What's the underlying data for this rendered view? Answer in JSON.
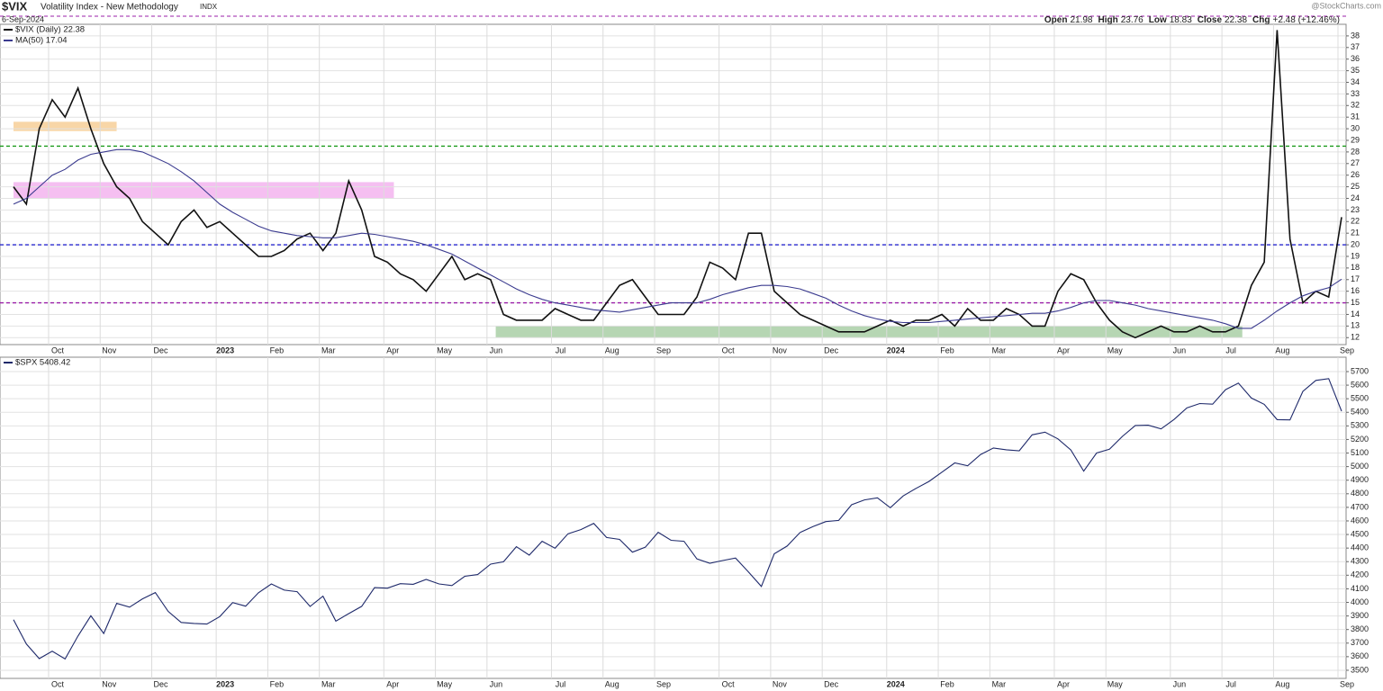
{
  "chart_data": [
    {
      "type": "line",
      "title": "$VIX",
      "subtitle": "Volatility Index - New Methodology",
      "exchange": "INDX",
      "date": "6-Sep-2024",
      "watermark": "@StockCharts.com",
      "quote": [
        {
          "label": "Open",
          "value": "21.98"
        },
        {
          "label": "High",
          "value": "23.76"
        },
        {
          "label": "Low",
          "value": "18.83"
        },
        {
          "label": "Close",
          "value": "22.38"
        },
        {
          "label": "Chg",
          "value": "+2.48 (+12.46%)"
        }
      ],
      "categories": [
        null,
        null,
        null,
        "Oct",
        null,
        null,
        null,
        "Nov",
        null,
        null,
        null,
        "Dec",
        null,
        null,
        null,
        null,
        "2023",
        null,
        null,
        null,
        "Feb",
        null,
        null,
        null,
        "Mar",
        null,
        null,
        null,
        null,
        "Apr",
        null,
        null,
        null,
        "May",
        null,
        null,
        null,
        "Jun",
        null,
        null,
        null,
        null,
        "Jul",
        null,
        null,
        null,
        "Aug",
        null,
        null,
        null,
        "Sep",
        null,
        null,
        null,
        null,
        "Oct",
        null,
        null,
        null,
        "Nov",
        null,
        null,
        null,
        "Dec",
        null,
        null,
        null,
        null,
        "2024",
        null,
        null,
        null,
        "Feb",
        null,
        null,
        null,
        "Mar",
        null,
        null,
        null,
        null,
        "Apr",
        null,
        null,
        null,
        "May",
        null,
        null,
        null,
        null,
        "Jun",
        null,
        null,
        null,
        "Jul",
        null,
        null,
        null,
        "Aug",
        null,
        null,
        null,
        null,
        "Sep"
      ],
      "series": [
        {
          "name": "$VIX (Daily) 22.38",
          "color": "#111111",
          "values": [
            25,
            23.5,
            30,
            32.5,
            31,
            33.5,
            30,
            27,
            25,
            24,
            22,
            21,
            20,
            22,
            23,
            21.5,
            22,
            21,
            20,
            19,
            19,
            19.5,
            20.5,
            21,
            19.5,
            21,
            25.5,
            23,
            19,
            18.5,
            17.5,
            17,
            16,
            17.5,
            19,
            17,
            17.5,
            17,
            14,
            13.5,
            13.5,
            13.5,
            14.5,
            14,
            13.5,
            13.5,
            15,
            16.5,
            17,
            15.5,
            14,
            14,
            14,
            15.5,
            18.5,
            18,
            17,
            21,
            21,
            16,
            15,
            14,
            13.5,
            13,
            12.5,
            12.5,
            12.5,
            13,
            13.5,
            13,
            13.5,
            13.5,
            14,
            13,
            14.5,
            13.5,
            13.5,
            14.5,
            14,
            13,
            13,
            16,
            17.5,
            17,
            15,
            13.5,
            12.5,
            12,
            12.5,
            13,
            12.5,
            12.5,
            13,
            12.5,
            12.5,
            13,
            16.5,
            18.5,
            38.5,
            20.5,
            15,
            16,
            15.5,
            22.38
          ]
        },
        {
          "name": "MA(50) 17.04",
          "color": "#3b3b8f",
          "values": [
            23.5,
            24,
            25,
            26,
            26.5,
            27.3,
            27.8,
            28,
            28.2,
            28.2,
            28,
            27.5,
            27,
            26.3,
            25.5,
            24.5,
            23.5,
            22.8,
            22.2,
            21.6,
            21.2,
            21,
            20.8,
            20.7,
            20.6,
            20.6,
            20.8,
            21,
            20.9,
            20.7,
            20.5,
            20.3,
            20,
            19.6,
            19.2,
            18.6,
            18,
            17.4,
            16.8,
            16.2,
            15.7,
            15.3,
            15,
            14.8,
            14.6,
            14.4,
            14.3,
            14.2,
            14.4,
            14.6,
            14.8,
            15,
            15,
            15,
            15.3,
            15.7,
            16,
            16.3,
            16.5,
            16.5,
            16.4,
            16.2,
            15.8,
            15.4,
            14.8,
            14.3,
            13.9,
            13.6,
            13.4,
            13.3,
            13.3,
            13.3,
            13.4,
            13.5,
            13.6,
            13.7,
            13.8,
            13.9,
            14,
            14.1,
            14.1,
            14.3,
            14.6,
            15,
            15.2,
            15.2,
            15,
            14.8,
            14.5,
            14.3,
            14.1,
            13.9,
            13.7,
            13.5,
            13.2,
            12.8,
            12.8,
            13.5,
            14.3,
            15,
            15.6,
            16,
            16.3,
            17.04
          ]
        }
      ],
      "hlines": [
        {
          "value": 28.5,
          "color": "#1a9a1a"
        },
        {
          "value": 20,
          "color": "#2b2bd0"
        },
        {
          "value": 15,
          "color": "#9b1fa8"
        }
      ],
      "bands": [
        {
          "y": [
            29.8,
            30.6
          ],
          "x_range": [
            0,
            8
          ],
          "color": "#f7cf98"
        },
        {
          "y": [
            24,
            25.4
          ],
          "x_range": [
            0,
            29.5
          ],
          "color": "#f3b4ee"
        },
        {
          "y": [
            12,
            13
          ],
          "x_range": [
            37.4,
            95.3
          ],
          "color": "#a9cfa6"
        }
      ],
      "ylim": [
        11.4,
        39
      ],
      "yticks": [
        12,
        13,
        14,
        15,
        16,
        17,
        18,
        19,
        20,
        21,
        22,
        23,
        24,
        25,
        26,
        27,
        28,
        29,
        30,
        31,
        32,
        33,
        34,
        35,
        36,
        37,
        38
      ],
      "grid": true
    },
    {
      "type": "line",
      "categories": [
        null,
        null,
        null,
        "Oct",
        null,
        null,
        null,
        "Nov",
        null,
        null,
        null,
        "Dec",
        null,
        null,
        null,
        null,
        "2023",
        null,
        null,
        null,
        "Feb",
        null,
        null,
        null,
        "Mar",
        null,
        null,
        null,
        null,
        "Apr",
        null,
        null,
        null,
        "May",
        null,
        null,
        null,
        "Jun",
        null,
        null,
        null,
        null,
        "Jul",
        null,
        null,
        null,
        "Aug",
        null,
        null,
        null,
        "Sep",
        null,
        null,
        null,
        null,
        "Oct",
        null,
        null,
        null,
        "Nov",
        null,
        null,
        null,
        "Dec",
        null,
        null,
        null,
        null,
        "2024",
        null,
        null,
        null,
        "Feb",
        null,
        null,
        null,
        "Mar",
        null,
        null,
        null,
        null,
        "Apr",
        null,
        null,
        null,
        "May",
        null,
        null,
        null,
        null,
        "Jun",
        null,
        null,
        null,
        "Jul",
        null,
        null,
        null,
        "Aug",
        null,
        null,
        null,
        null,
        "Sep"
      ],
      "series": [
        {
          "name": "$SPX 5408.42",
          "color": "#1f2a6b",
          "values": [
            3873,
            3693,
            3586,
            3640,
            3583,
            3752,
            3901,
            3771,
            3993,
            3965,
            4026,
            4072,
            3934,
            3852,
            3845,
            3840,
            3895,
            3999,
            3972,
            4071,
            4136,
            4090,
            4079,
            3970,
            4046,
            3862,
            3917,
            3971,
            4109,
            4105,
            4138,
            4133,
            4169,
            4136,
            4124,
            4192,
            4205,
            4282,
            4299,
            4410,
            4348,
            4450,
            4399,
            4505,
            4536,
            4582,
            4478,
            4464,
            4370,
            4406,
            4516,
            4457,
            4450,
            4320,
            4288,
            4308,
            4327,
            4224,
            4117,
            4358,
            4415,
            4514,
            4559,
            4595,
            4604,
            4719,
            4755,
            4770,
            4697,
            4784,
            4840,
            4891,
            4959,
            5027,
            5006,
            5089,
            5137,
            5124,
            5117,
            5234,
            5254,
            5204,
            5123,
            4967,
            5100,
            5128,
            5223,
            5303,
            5305,
            5278,
            5347,
            5432,
            5465,
            5460,
            5567,
            5615,
            5505,
            5459,
            5346,
            5344,
            5554,
            5635,
            5648,
            5408.42
          ]
        }
      ],
      "ylim": [
        3440,
        5806
      ],
      "yticks": [
        3500,
        3600,
        3700,
        3800,
        3900,
        4000,
        4100,
        4200,
        4300,
        4400,
        4500,
        4600,
        4700,
        4800,
        4900,
        5000,
        5100,
        5200,
        5300,
        5400,
        5500,
        5600,
        5700
      ],
      "grid": true
    }
  ]
}
